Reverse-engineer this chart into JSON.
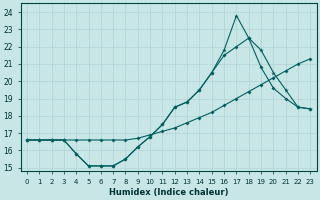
{
  "xlabel": "Humidex (Indice chaleur)",
  "bg_color": "#c8e6e6",
  "grid_color": "#b0d4d4",
  "line_color": "#006060",
  "xlim": [
    -0.5,
    23.5
  ],
  "ylim": [
    14.8,
    24.5
  ],
  "yticks": [
    15,
    16,
    17,
    18,
    19,
    20,
    21,
    22,
    23,
    24
  ],
  "xticks": [
    0,
    1,
    2,
    3,
    4,
    5,
    6,
    7,
    8,
    9,
    10,
    11,
    12,
    13,
    14,
    15,
    16,
    17,
    18,
    19,
    20,
    21,
    22,
    23
  ],
  "line1_x": [
    0,
    1,
    2,
    3,
    4,
    5,
    6,
    7,
    8,
    9,
    10,
    11,
    12,
    13,
    14,
    15,
    16,
    17,
    18,
    19,
    20,
    21,
    22,
    23
  ],
  "line1_y": [
    16.6,
    16.6,
    16.6,
    16.6,
    16.6,
    16.6,
    16.6,
    16.6,
    16.6,
    16.7,
    16.9,
    17.1,
    17.3,
    17.6,
    17.9,
    18.2,
    18.6,
    19.0,
    19.4,
    19.8,
    20.2,
    20.6,
    21.0,
    21.3
  ],
  "line2_x": [
    0,
    1,
    2,
    3,
    4,
    5,
    6,
    7,
    8,
    9,
    10,
    11,
    12,
    13,
    14,
    15,
    16,
    17,
    18,
    19,
    20,
    21,
    22,
    23
  ],
  "line2_y": [
    16.6,
    16.6,
    16.6,
    16.6,
    15.8,
    15.1,
    15.1,
    15.1,
    15.5,
    16.2,
    16.8,
    17.5,
    18.5,
    18.8,
    19.5,
    20.5,
    21.8,
    23.8,
    22.5,
    21.8,
    20.5,
    19.5,
    18.5,
    18.4
  ],
  "line3_x": [
    0,
    1,
    2,
    3,
    4,
    5,
    6,
    7,
    8,
    9,
    10,
    11,
    12,
    13,
    14,
    15,
    16,
    17,
    18,
    19,
    20,
    21,
    22,
    23
  ],
  "line3_y": [
    16.6,
    16.6,
    16.6,
    16.6,
    15.8,
    15.1,
    15.1,
    15.1,
    15.5,
    16.2,
    16.8,
    17.5,
    18.5,
    18.8,
    19.5,
    20.5,
    21.5,
    22.0,
    22.5,
    20.8,
    19.6,
    19.0,
    18.5,
    18.4
  ]
}
